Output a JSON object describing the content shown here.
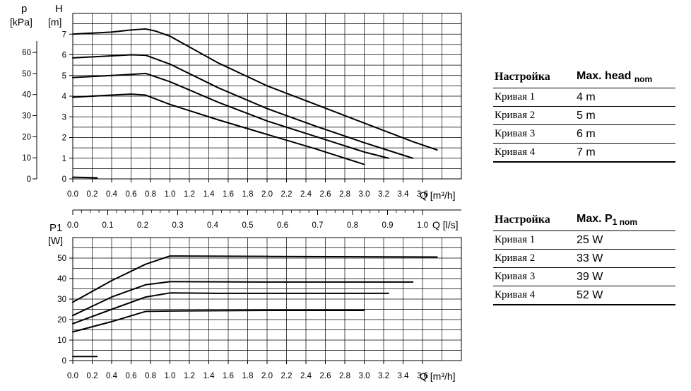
{
  "chart_data": [
    {
      "type": "line",
      "title": "",
      "ylabel_left_primary": "H",
      "ylabel_left_primary_unit": "[m]",
      "ylabel_left_secondary": "p",
      "ylabel_left_secondary_unit": "[kPa]",
      "xlabel": "Q [m³/h]",
      "xlim": [
        0,
        4.0
      ],
      "ylim": [
        0,
        8
      ],
      "x_ticks": [
        "0.0",
        "0.2",
        "0.4",
        "0.6",
        "0.8",
        "1.0",
        "1.2",
        "1.4",
        "1.6",
        "1.8",
        "2.0",
        "2.2",
        "2.4",
        "2.6",
        "2.8",
        "3.0",
        "3.2",
        "3.4",
        "3.6"
      ],
      "y_ticks": [
        "0",
        "1",
        "2",
        "3",
        "4",
        "5",
        "6",
        "7"
      ],
      "kpa_ticks": [
        "0",
        "10",
        "20",
        "30",
        "40",
        "50",
        "60"
      ],
      "grid": true,
      "series": [
        {
          "x": [
            0,
            0.25
          ],
          "y": [
            0.08,
            0.05
          ]
        },
        {
          "x": [
            0,
            0.4,
            0.6,
            0.75,
            1.0,
            1.5,
            2.0,
            2.5,
            3.0
          ],
          "y": [
            3.95,
            4.05,
            4.1,
            4.05,
            3.6,
            2.85,
            2.15,
            1.45,
            0.7
          ]
        },
        {
          "x": [
            0,
            0.4,
            0.6,
            0.75,
            1.0,
            1.5,
            2.0,
            2.5,
            3.0,
            3.25
          ],
          "y": [
            4.9,
            5.0,
            5.05,
            5.1,
            4.7,
            3.7,
            2.8,
            2.05,
            1.3,
            1.0
          ]
        },
        {
          "x": [
            0,
            0.4,
            0.6,
            0.75,
            1.0,
            1.5,
            2.0,
            2.5,
            3.0,
            3.5
          ],
          "y": [
            5.85,
            5.95,
            6.0,
            5.98,
            5.55,
            4.4,
            3.4,
            2.55,
            1.75,
            1.0
          ]
        },
        {
          "x": [
            0,
            0.4,
            0.6,
            0.75,
            0.85,
            1.0,
            1.5,
            2.0,
            2.5,
            3.0,
            3.5,
            3.75
          ],
          "y": [
            7.0,
            7.1,
            7.2,
            7.25,
            7.15,
            6.9,
            5.6,
            4.5,
            3.6,
            2.7,
            1.8,
            1.4
          ]
        }
      ]
    },
    {
      "type": "line",
      "title": "",
      "ylabel": "P1",
      "ylabel_unit": "[W]",
      "xlabel": "Q [m³/h]",
      "xlabel_secondary": "Q [l/s]",
      "xlim": [
        0,
        4.0
      ],
      "ylim": [
        0,
        60
      ],
      "x_ticks": [
        "0.0",
        "0.2",
        "0.4",
        "0.6",
        "0.8",
        "1.0",
        "1.2",
        "1.4",
        "1.6",
        "1.8",
        "2.0",
        "2.2",
        "2.4",
        "2.6",
        "2.8",
        "3.0",
        "3.2",
        "3.4",
        "3.6"
      ],
      "ls_ticks": [
        "0.0",
        "0.1",
        "0.2",
        "0.3",
        "0.4",
        "0.5",
        "0.6",
        "0.7",
        "0.8",
        "0.9",
        "1.0"
      ],
      "y_ticks": [
        "0",
        "10",
        "20",
        "30",
        "40",
        "50"
      ],
      "grid": true,
      "series": [
        {
          "x": [
            0,
            0.25
          ],
          "y": [
            2,
            2
          ]
        },
        {
          "x": [
            0,
            0.4,
            0.75,
            1.0,
            2.0,
            3.0
          ],
          "y": [
            14,
            19,
            24,
            24.2,
            24.5,
            24.5
          ]
        },
        {
          "x": [
            0,
            0.4,
            0.75,
            1.0,
            1.5,
            2.0,
            3.25
          ],
          "y": [
            18,
            25,
            31,
            33,
            32.8,
            32.8,
            32.8
          ]
        },
        {
          "x": [
            0,
            0.4,
            0.75,
            1.0,
            2.0,
            3.5
          ],
          "y": [
            22,
            31,
            37,
            38.5,
            38.3,
            38.3
          ]
        },
        {
          "x": [
            0,
            0.4,
            0.75,
            1.0,
            2.0,
            3.75
          ],
          "y": [
            28.5,
            39,
            47,
            51,
            50.8,
            50.5
          ]
        }
      ]
    }
  ],
  "table_head": {
    "header": {
      "setting": "Настройка",
      "value_main": "Max. head",
      "value_sub": "nom"
    },
    "rows": [
      {
        "label": "Кривая 1",
        "value": "4 m"
      },
      {
        "label": "Кривая 2",
        "value": "5 m"
      },
      {
        "label": "Кривая 3",
        "value": "6 m"
      },
      {
        "label": "Кривая 4",
        "value": "7 m"
      }
    ]
  },
  "table_power": {
    "header": {
      "setting": "Настройка",
      "value_main": "Max. P",
      "value_sub": "1 nom"
    },
    "rows": [
      {
        "label": "Кривая 1",
        "value": "25 W"
      },
      {
        "label": "Кривая 2",
        "value": "33 W"
      },
      {
        "label": "Кривая 3",
        "value": "39 W"
      },
      {
        "label": "Кривая 4",
        "value": "52 W"
      }
    ]
  }
}
